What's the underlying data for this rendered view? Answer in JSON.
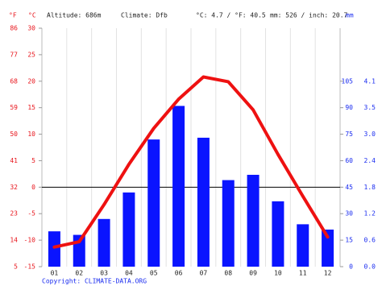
{
  "chart_data": {
    "type": "climate",
    "units_f": "°F",
    "units_c": "°C",
    "units_mm": "mm",
    "altitude": "Altitude: 686m",
    "climate": "Climate: Dfb",
    "temperature_summary": "°C: 4.7 / °F: 40.5",
    "precipitation_summary": "mm: 526 / inch: 20.7",
    "copyright": "Copyright: CLIMATE-DATA.ORG",
    "categories": [
      "01",
      "02",
      "03",
      "04",
      "05",
      "06",
      "07",
      "08",
      "09",
      "10",
      "11",
      "12"
    ],
    "precipitation": {
      "color": "#0a14ff",
      "axis": "y2",
      "values": [
        20,
        18,
        27,
        42,
        72,
        91,
        73,
        49,
        52,
        37,
        24,
        21
      ]
    },
    "temperature": {
      "color": "#ee1111",
      "values": [
        -11.3,
        -10.3,
        -3.3,
        4.3,
        11.1,
        16.6,
        20.8,
        19.9,
        14.6,
        6.2,
        -1.7,
        -9.4
      ]
    },
    "ylim": [
      -15,
      30
    ],
    "yticks": [
      30,
      25,
      20,
      15,
      10,
      5,
      0,
      -5,
      -10,
      -15
    ],
    "yticks_f": [
      86,
      77,
      68,
      59,
      50,
      41,
      32,
      23,
      14,
      5
    ],
    "y2lim": [
      0,
      135
    ],
    "y2ticks": [
      105,
      90,
      75,
      60,
      45,
      30,
      15,
      0
    ],
    "y2ticks_inch": [
      4.1,
      3.5,
      {
        "value": 3,
        "label": "3.0"
      },
      2.4,
      1.8,
      1.2,
      0.6,
      {
        "value": 0,
        "label": "0.0"
      }
    ],
    "zero_line": true
  }
}
